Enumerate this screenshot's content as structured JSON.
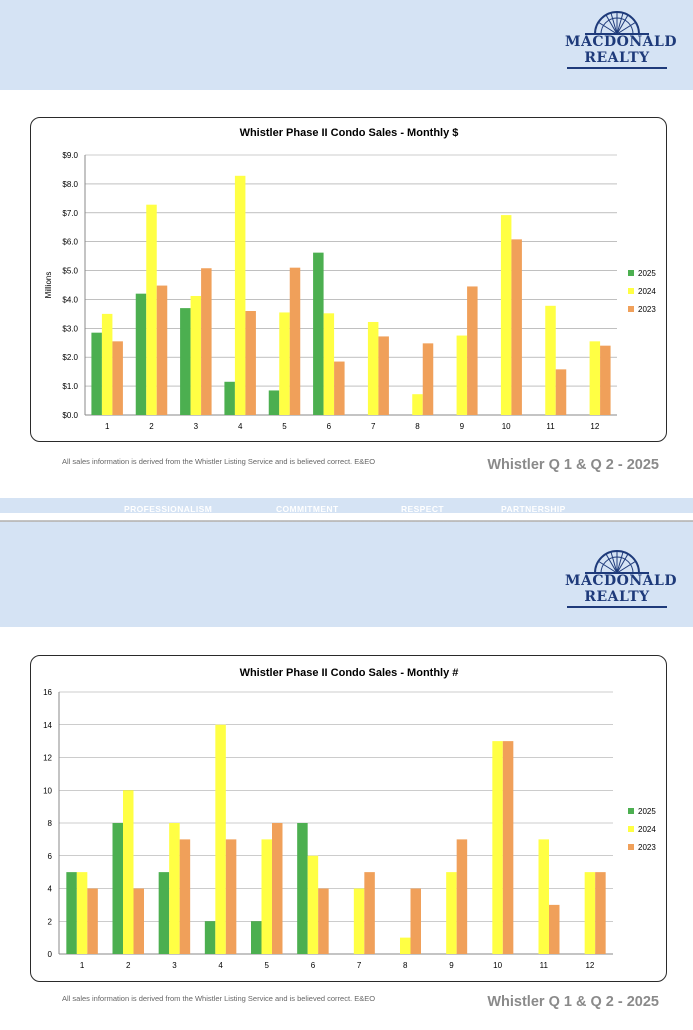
{
  "brand": {
    "name_line1": "MACDONALD",
    "name_line2": "REALTY",
    "color": "#1e3a7a"
  },
  "footer": {
    "note": "All sales information is derived from the Whistler Listing Service and is believed correct. E&EO",
    "title": "Whistler Q 1 & Q 2 - 2025"
  },
  "values_band": [
    "PROFESSIONALISM",
    "COMMITMENT",
    "RESPECT",
    "PARTNERSHIP"
  ],
  "series_colors": {
    "2025": "#4caf50",
    "2024": "#ffff44",
    "2023": "#f0a05a"
  },
  "chart_data": [
    {
      "type": "bar",
      "title": "Whistler Phase II Condo Sales - Monthly $",
      "xlabel": "",
      "ylabel": "Millions",
      "ylim": [
        0,
        9
      ],
      "ytick_step": 1,
      "ytick_labels": [
        "$0.0",
        "$1.0",
        "$2.0",
        "$3.0",
        "$4.0",
        "$5.0",
        "$6.0",
        "$7.0",
        "$8.0",
        "$9.0"
      ],
      "categories": [
        "1",
        "2",
        "3",
        "4",
        "5",
        "6",
        "7",
        "8",
        "9",
        "10",
        "11",
        "12"
      ],
      "grid": true,
      "legend": "right",
      "series": [
        {
          "name": "2025",
          "values": [
            2.85,
            4.2,
            3.7,
            1.15,
            0.85,
            5.62,
            null,
            null,
            null,
            null,
            null,
            null
          ]
        },
        {
          "name": "2024",
          "values": [
            3.5,
            7.28,
            4.12,
            8.28,
            3.55,
            3.52,
            3.22,
            0.72,
            2.75,
            6.92,
            3.78,
            2.55
          ]
        },
        {
          "name": "2023",
          "values": [
            2.55,
            4.48,
            5.08,
            3.6,
            5.1,
            1.85,
            2.72,
            2.48,
            4.45,
            6.08,
            1.58,
            2.4
          ]
        }
      ]
    },
    {
      "type": "bar",
      "title": "Whistler Phase II Condo Sales - Monthly #",
      "xlabel": "",
      "ylabel": "",
      "ylim": [
        0,
        16
      ],
      "ytick_step": 2,
      "ytick_labels": [
        "0",
        "2",
        "4",
        "6",
        "8",
        "10",
        "12",
        "14",
        "16"
      ],
      "categories": [
        "1",
        "2",
        "3",
        "4",
        "5",
        "6",
        "7",
        "8",
        "9",
        "10",
        "11",
        "12"
      ],
      "grid": true,
      "legend": "right",
      "series": [
        {
          "name": "2025",
          "values": [
            5,
            8,
            5,
            2,
            2,
            8,
            null,
            null,
            null,
            null,
            null,
            null
          ]
        },
        {
          "name": "2024",
          "values": [
            5,
            10,
            8,
            14,
            7,
            6,
            4,
            1,
            5,
            13,
            7,
            5
          ]
        },
        {
          "name": "2023",
          "values": [
            4,
            4,
            7,
            7,
            8,
            4,
            5,
            4,
            7,
            13,
            3,
            5
          ]
        }
      ]
    }
  ]
}
